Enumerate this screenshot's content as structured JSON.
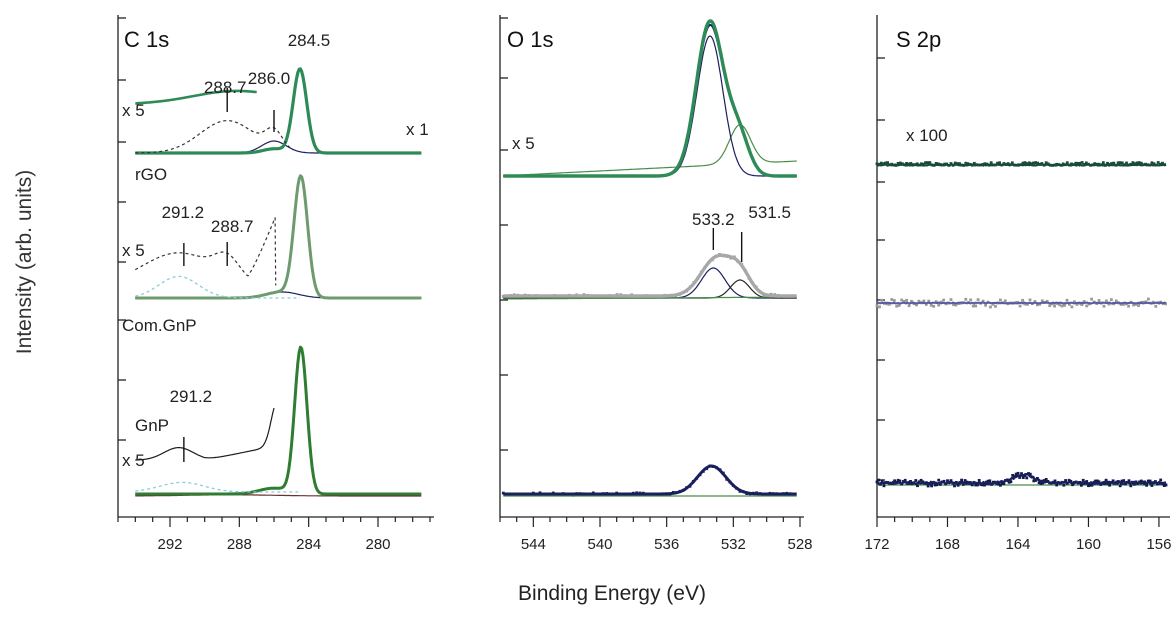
{
  "chart_data": {
    "type": "line",
    "ylabel": "Intensity (arb. units)",
    "xlabel": "Binding Energy (eV)",
    "samples": [
      "rGO",
      "Com.GnP",
      "GnP"
    ],
    "sample_colors": {
      "rGO": "#2e8b57",
      "Com.GnP": "#a0a0a0",
      "GnP": "#1a1f5e"
    },
    "panels": [
      {
        "title": "C 1s",
        "xlim": [
          295,
          277
        ],
        "ticks": [
          292,
          288,
          284,
          280
        ],
        "multipliers": [
          "x 5",
          "x 1",
          "x 5",
          "x 5"
        ],
        "sample_labels": [
          "rGO",
          "Com.GnP",
          "GnP"
        ],
        "peaks": [
          {
            "sample": "rGO",
            "labels": [
              "288.7",
              "286.0",
              "284.5"
            ]
          },
          {
            "sample": "Com.GnP",
            "labels": [
              "291.2",
              "288.7"
            ]
          },
          {
            "sample": "GnP",
            "labels": [
              "291.2"
            ]
          }
        ]
      },
      {
        "title": "O 1s",
        "xlim": [
          546,
          528
        ],
        "ticks": [
          544,
          540,
          536,
          532,
          528
        ],
        "multipliers": [
          "x 5"
        ],
        "peaks": [
          {
            "sample": "Com.GnP",
            "labels": [
              "533.2",
              "531.5"
            ]
          }
        ]
      },
      {
        "title": "S 2p",
        "xlim": [
          172,
          155.6
        ],
        "ticks": [
          172,
          168,
          164,
          160,
          156
        ],
        "multipliers": [
          "x 100"
        ]
      }
    ]
  }
}
